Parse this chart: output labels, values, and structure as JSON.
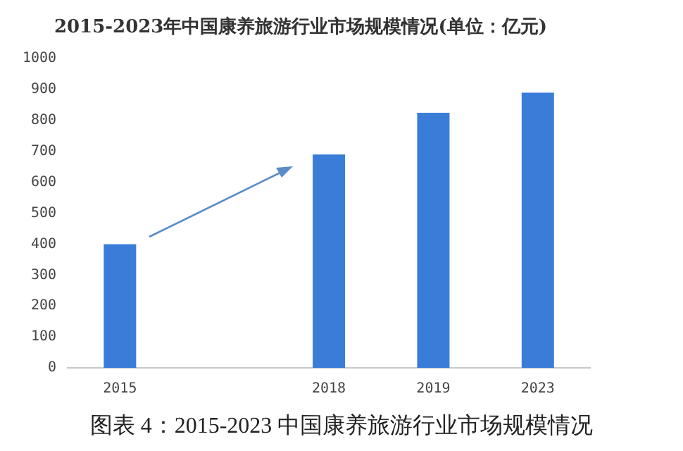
{
  "chart_data": {
    "type": "bar",
    "title": "2015-2023年中国康养旅游行业市场规模情况(单位：亿元)",
    "categories": [
      "2015",
      null,
      "2018",
      "2019",
      "2023"
    ],
    "values": [
      400,
      null,
      690,
      825,
      890
    ],
    "color": "#3a7dd8",
    "ylim": [
      0,
      1000
    ],
    "yticks": [
      0,
      100,
      200,
      300,
      400,
      500,
      600,
      700,
      800,
      900,
      1000
    ],
    "grid": false,
    "legend": false,
    "annotations": [
      "图表 4：2015-2023 中国康养旅游行业市场规模情况"
    ]
  }
}
